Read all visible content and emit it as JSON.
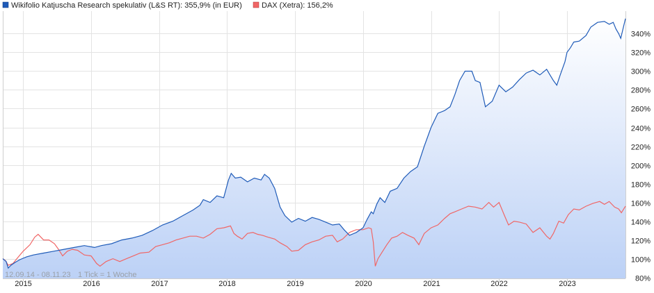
{
  "legend": {
    "series1_label": "Wikifolio Katjuscha Research spekulativ (L&S RT): 355,9% (in EUR)",
    "series2_label": "DAX (Xetra): 156,2%"
  },
  "footer": {
    "range_text": "12.09.14 - 08.11.23",
    "tick_text": "1 Tick = 1 Woche"
  },
  "chart_data": {
    "type": "line",
    "title": "",
    "xlabel": "",
    "ylabel": "",
    "xlim": [
      2014.7,
      2023.86
    ],
    "ylim": [
      79,
      364
    ],
    "x_ticks": [
      {
        "x": 2015,
        "label": "2015"
      },
      {
        "x": 2016,
        "label": "2016"
      },
      {
        "x": 2017,
        "label": "2017"
      },
      {
        "x": 2018,
        "label": "2018"
      },
      {
        "x": 2019,
        "label": "2019"
      },
      {
        "x": 2020,
        "label": "2020"
      },
      {
        "x": 2021,
        "label": "2021"
      },
      {
        "x": 2022,
        "label": "2022"
      },
      {
        "x": 2023,
        "label": "2023"
      }
    ],
    "y_ticks": [
      {
        "y": 80,
        "label": "80%"
      },
      {
        "y": 100,
        "label": "100%"
      },
      {
        "y": 120,
        "label": "120%"
      },
      {
        "y": 140,
        "label": "140%"
      },
      {
        "y": 160,
        "label": "160%"
      },
      {
        "y": 180,
        "label": "180%"
      },
      {
        "y": 200,
        "label": "200%"
      },
      {
        "y": 220,
        "label": "220%"
      },
      {
        "y": 240,
        "label": "240%"
      },
      {
        "y": 260,
        "label": "260%"
      },
      {
        "y": 280,
        "label": "280%"
      },
      {
        "y": 300,
        "label": "300%"
      },
      {
        "y": 320,
        "label": "320%"
      },
      {
        "y": 340,
        "label": "340%"
      }
    ],
    "grid": true,
    "legend_position": "top-left",
    "series": [
      {
        "name": "Wikifolio Katjuscha Research spekulativ (L&S RT): 355,9% (in EUR)",
        "color": "#1f5bb8",
        "fill": true,
        "points": [
          [
            2014.7,
            100
          ],
          [
            2014.75,
            97
          ],
          [
            2014.78,
            90
          ],
          [
            2014.82,
            93
          ],
          [
            2014.88,
            96
          ],
          [
            2014.95,
            99
          ],
          [
            2015.05,
            102
          ],
          [
            2015.15,
            104
          ],
          [
            2015.3,
            106
          ],
          [
            2015.45,
            108
          ],
          [
            2015.6,
            110
          ],
          [
            2015.75,
            112
          ],
          [
            2015.9,
            114
          ],
          [
            2016.05,
            112
          ],
          [
            2016.15,
            114
          ],
          [
            2016.3,
            116
          ],
          [
            2016.45,
            120
          ],
          [
            2016.6,
            122
          ],
          [
            2016.75,
            125
          ],
          [
            2016.9,
            130
          ],
          [
            2017.05,
            136
          ],
          [
            2017.2,
            140
          ],
          [
            2017.35,
            146
          ],
          [
            2017.5,
            152
          ],
          [
            2017.6,
            157
          ],
          [
            2017.65,
            163
          ],
          [
            2017.75,
            160
          ],
          [
            2017.85,
            167
          ],
          [
            2017.95,
            165
          ],
          [
            2018.02,
            184
          ],
          [
            2018.06,
            191
          ],
          [
            2018.12,
            186
          ],
          [
            2018.2,
            187
          ],
          [
            2018.3,
            182
          ],
          [
            2018.4,
            186
          ],
          [
            2018.5,
            184
          ],
          [
            2018.55,
            190
          ],
          [
            2018.62,
            186
          ],
          [
            2018.7,
            175
          ],
          [
            2018.78,
            155
          ],
          [
            2018.85,
            146
          ],
          [
            2018.95,
            139
          ],
          [
            2019.05,
            143
          ],
          [
            2019.15,
            140
          ],
          [
            2019.25,
            144
          ],
          [
            2019.35,
            142
          ],
          [
            2019.45,
            139
          ],
          [
            2019.55,
            136
          ],
          [
            2019.65,
            137
          ],
          [
            2019.72,
            131
          ],
          [
            2019.8,
            125
          ],
          [
            2019.9,
            128
          ],
          [
            2020.0,
            133
          ],
          [
            2020.06,
            142
          ],
          [
            2020.12,
            150
          ],
          [
            2020.15,
            148
          ],
          [
            2020.2,
            158
          ],
          [
            2020.25,
            165
          ],
          [
            2020.32,
            160
          ],
          [
            2020.4,
            172
          ],
          [
            2020.5,
            175
          ],
          [
            2020.6,
            186
          ],
          [
            2020.7,
            193
          ],
          [
            2020.8,
            198
          ],
          [
            2020.9,
            220
          ],
          [
            2021.0,
            240
          ],
          [
            2021.1,
            255
          ],
          [
            2021.2,
            258
          ],
          [
            2021.28,
            262
          ],
          [
            2021.35,
            275
          ],
          [
            2021.42,
            290
          ],
          [
            2021.5,
            300
          ],
          [
            2021.6,
            300
          ],
          [
            2021.65,
            290
          ],
          [
            2021.72,
            288
          ],
          [
            2021.8,
            262
          ],
          [
            2021.9,
            268
          ],
          [
            2022.0,
            285
          ],
          [
            2022.1,
            278
          ],
          [
            2022.2,
            283
          ],
          [
            2022.3,
            291
          ],
          [
            2022.4,
            298
          ],
          [
            2022.5,
            301
          ],
          [
            2022.6,
            296
          ],
          [
            2022.7,
            302
          ],
          [
            2022.75,
            296
          ],
          [
            2022.8,
            290
          ],
          [
            2022.85,
            285
          ],
          [
            2022.9,
            296
          ],
          [
            2022.97,
            310
          ],
          [
            2023.0,
            320
          ],
          [
            2023.05,
            325
          ],
          [
            2023.1,
            331
          ],
          [
            2023.18,
            332
          ],
          [
            2023.28,
            338
          ],
          [
            2023.35,
            347
          ],
          [
            2023.45,
            352
          ],
          [
            2023.55,
            353
          ],
          [
            2023.62,
            350
          ],
          [
            2023.68,
            352
          ],
          [
            2023.72,
            345
          ],
          [
            2023.76,
            340
          ],
          [
            2023.79,
            335
          ],
          [
            2023.82,
            344
          ],
          [
            2023.86,
            356
          ]
        ]
      },
      {
        "name": "DAX (Xetra): 156,2%",
        "color": "#f06666",
        "fill": false,
        "points": [
          [
            2014.7,
            100
          ],
          [
            2014.74,
            98
          ],
          [
            2014.78,
            93
          ],
          [
            2014.85,
            95
          ],
          [
            2014.93,
            102
          ],
          [
            2015.0,
            108
          ],
          [
            2015.1,
            115
          ],
          [
            2015.17,
            123
          ],
          [
            2015.22,
            126
          ],
          [
            2015.3,
            120
          ],
          [
            2015.38,
            120
          ],
          [
            2015.46,
            116
          ],
          [
            2015.52,
            110
          ],
          [
            2015.58,
            103
          ],
          [
            2015.65,
            108
          ],
          [
            2015.72,
            110
          ],
          [
            2015.8,
            109
          ],
          [
            2015.9,
            104
          ],
          [
            2016.0,
            103
          ],
          [
            2016.08,
            95
          ],
          [
            2016.13,
            92
          ],
          [
            2016.22,
            97
          ],
          [
            2016.32,
            100
          ],
          [
            2016.42,
            97
          ],
          [
            2016.52,
            100
          ],
          [
            2016.62,
            103
          ],
          [
            2016.72,
            106
          ],
          [
            2016.85,
            107
          ],
          [
            2016.95,
            113
          ],
          [
            2017.05,
            115
          ],
          [
            2017.15,
            117
          ],
          [
            2017.25,
            120
          ],
          [
            2017.35,
            122
          ],
          [
            2017.45,
            124
          ],
          [
            2017.55,
            124
          ],
          [
            2017.65,
            122
          ],
          [
            2017.75,
            126
          ],
          [
            2017.85,
            132
          ],
          [
            2017.95,
            133
          ],
          [
            2018.05,
            135
          ],
          [
            2018.1,
            127
          ],
          [
            2018.15,
            124
          ],
          [
            2018.22,
            121
          ],
          [
            2018.3,
            127
          ],
          [
            2018.38,
            128
          ],
          [
            2018.45,
            126
          ],
          [
            2018.52,
            125
          ],
          [
            2018.6,
            123
          ],
          [
            2018.7,
            121
          ],
          [
            2018.78,
            117
          ],
          [
            2018.88,
            113
          ],
          [
            2018.95,
            108
          ],
          [
            2019.05,
            109
          ],
          [
            2019.15,
            115
          ],
          [
            2019.25,
            118
          ],
          [
            2019.35,
            120
          ],
          [
            2019.45,
            124
          ],
          [
            2019.55,
            125
          ],
          [
            2019.62,
            118
          ],
          [
            2019.7,
            121
          ],
          [
            2019.8,
            128
          ],
          [
            2019.9,
            131
          ],
          [
            2020.0,
            131
          ],
          [
            2020.08,
            133
          ],
          [
            2020.12,
            132
          ],
          [
            2020.15,
            118
          ],
          [
            2020.18,
            92
          ],
          [
            2020.22,
            100
          ],
          [
            2020.28,
            107
          ],
          [
            2020.35,
            115
          ],
          [
            2020.42,
            122
          ],
          [
            2020.5,
            124
          ],
          [
            2020.58,
            128
          ],
          [
            2020.66,
            125
          ],
          [
            2020.75,
            122
          ],
          [
            2020.82,
            115
          ],
          [
            2020.9,
            127
          ],
          [
            2021.0,
            133
          ],
          [
            2021.1,
            136
          ],
          [
            2021.2,
            143
          ],
          [
            2021.28,
            148
          ],
          [
            2021.35,
            150
          ],
          [
            2021.45,
            153
          ],
          [
            2021.55,
            156
          ],
          [
            2021.65,
            155
          ],
          [
            2021.75,
            153
          ],
          [
            2021.85,
            160
          ],
          [
            2021.92,
            155
          ],
          [
            2022.0,
            160
          ],
          [
            2022.08,
            146
          ],
          [
            2022.14,
            136
          ],
          [
            2022.22,
            140
          ],
          [
            2022.3,
            139
          ],
          [
            2022.4,
            137
          ],
          [
            2022.5,
            128
          ],
          [
            2022.6,
            133
          ],
          [
            2022.7,
            124
          ],
          [
            2022.75,
            121
          ],
          [
            2022.8,
            127
          ],
          [
            2022.88,
            140
          ],
          [
            2022.95,
            138
          ],
          [
            2023.02,
            147
          ],
          [
            2023.1,
            153
          ],
          [
            2023.18,
            152
          ],
          [
            2023.28,
            156
          ],
          [
            2023.38,
            159
          ],
          [
            2023.48,
            161
          ],
          [
            2023.55,
            158
          ],
          [
            2023.62,
            161
          ],
          [
            2023.7,
            155
          ],
          [
            2023.76,
            153
          ],
          [
            2023.8,
            149
          ],
          [
            2023.86,
            156
          ]
        ]
      }
    ]
  }
}
